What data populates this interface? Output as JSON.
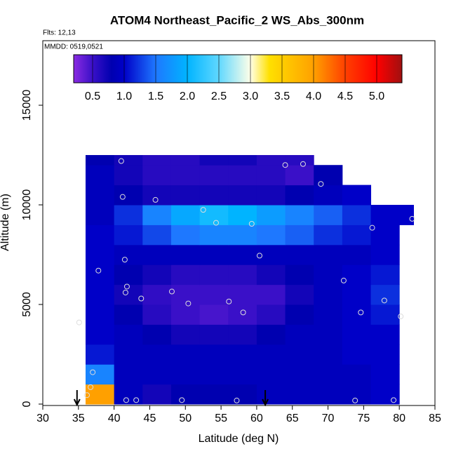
{
  "chart_data": {
    "type": "heatmap",
    "title": "ATOM4 Northeast_Pacific_2 WS_Abs_300nm",
    "annotations": [
      "Flts: 12,13",
      "MMDD: 0519,0521"
    ],
    "x_label": "Latitude (deg N)",
    "y_label": "Altitude (m)",
    "xlim": [
      30,
      85
    ],
    "xticks": [
      30,
      35,
      40,
      45,
      50,
      55,
      60,
      65,
      70,
      75,
      80,
      85
    ],
    "ylim": [
      -70,
      18240
    ],
    "yticks": [
      0,
      5000,
      10000,
      15000
    ],
    "x_edges": [
      36,
      40,
      44,
      48,
      52,
      56,
      60,
      64,
      68,
      72,
      76,
      80,
      82
    ],
    "y_edges": [
      0,
      1000,
      2000,
      3000,
      4000,
      5000,
      6000,
      7000,
      8000,
      9000,
      10000,
      11000,
      12000,
      12500
    ],
    "z": [
      [
        4.0,
        0.9,
        0.7,
        0.8,
        0.8,
        0.8,
        0.9,
        0.9,
        0.9,
        0.9,
        1.0,
        null
      ],
      [
        1.6,
        0.9,
        0.9,
        0.9,
        0.9,
        0.9,
        0.9,
        0.9,
        0.9,
        0.9,
        1.0,
        null
      ],
      [
        1.1,
        0.9,
        0.9,
        0.9,
        0.9,
        0.9,
        0.9,
        0.9,
        0.9,
        1.0,
        1.0,
        null
      ],
      [
        1.0,
        0.9,
        0.8,
        0.7,
        0.7,
        0.7,
        0.8,
        0.9,
        0.9,
        1.0,
        1.0,
        null
      ],
      [
        1.0,
        0.8,
        0.6,
        0.5,
        0.45,
        0.5,
        0.6,
        0.8,
        0.9,
        1.0,
        1.1,
        null
      ],
      [
        1.0,
        0.7,
        0.55,
        0.5,
        0.5,
        0.5,
        0.5,
        0.7,
        0.9,
        1.0,
        1.2,
        null
      ],
      [
        1.0,
        0.8,
        0.7,
        0.6,
        0.6,
        0.6,
        0.7,
        0.8,
        0.9,
        1.0,
        1.1,
        null
      ],
      [
        1.0,
        0.9,
        0.9,
        0.9,
        0.9,
        0.9,
        0.9,
        0.9,
        0.9,
        0.9,
        1.0,
        null
      ],
      [
        1.0,
        1.1,
        1.3,
        1.5,
        1.6,
        1.6,
        1.5,
        1.4,
        1.2,
        1.1,
        1.0,
        null
      ],
      [
        0.9,
        1.2,
        1.6,
        1.9,
        2.1,
        2.0,
        1.8,
        1.6,
        1.4,
        1.2,
        1.0,
        1.0
      ],
      [
        0.9,
        0.8,
        0.7,
        0.7,
        0.7,
        0.7,
        0.7,
        0.8,
        0.9,
        1.0,
        null,
        null
      ],
      [
        0.9,
        0.7,
        0.6,
        0.6,
        0.6,
        0.6,
        0.6,
        0.5,
        0.8,
        null,
        null,
        null
      ],
      [
        0.8,
        0.7,
        0.6,
        0.6,
        0.7,
        0.7,
        0.6,
        0.6,
        null,
        null,
        null,
        null
      ]
    ],
    "points": {
      "color": "#dddddd",
      "x": [
        41,
        64,
        66.5,
        69,
        41.2,
        45.8,
        52.5,
        54.3,
        59.3,
        76.2,
        81.8,
        37.8,
        41.5,
        60.4,
        72.2,
        41.8,
        41.6,
        43.8,
        48.1,
        50.4,
        56.1,
        58.1,
        74.6,
        77.9,
        80.2,
        35.1,
        37,
        36.7,
        36.2,
        41.7,
        43.1,
        49.5,
        57.2,
        73.8,
        79.2
      ],
      "y": [
        12200,
        12000,
        12050,
        11050,
        10400,
        10250,
        9750,
        9100,
        9050,
        8850,
        9300,
        6700,
        7250,
        7450,
        6200,
        5900,
        5600,
        5300,
        5650,
        5050,
        5150,
        4600,
        4600,
        5200,
        4400,
        4100,
        1600,
        850,
        450,
        200,
        200,
        200,
        180,
        180,
        200
      ]
    },
    "arrow_x": [
      34.8,
      61.2
    ],
    "colorbar": {
      "lim": [
        0.2,
        5.4
      ],
      "ticks": [
        0.5,
        {
          "value": 1,
          "label": "1.0"
        },
        1.5,
        {
          "value": 2,
          "label": "2.0"
        },
        2.5,
        {
          "value": 3,
          "label": "3.0"
        },
        3.5,
        {
          "value": 4,
          "label": "4.0"
        },
        4.5,
        {
          "value": 5,
          "label": "5.0"
        }
      ],
      "colorscale": [
        [
          0.2,
          "#8a2be2"
        ],
        [
          0.5,
          "#3a10c8"
        ],
        [
          0.8,
          "#0000b0"
        ],
        [
          1.0,
          "#0000c8"
        ],
        [
          1.5,
          "#1e78ff"
        ],
        [
          2.0,
          "#00b4ff"
        ],
        [
          2.5,
          "#60d8ff"
        ],
        [
          3.0,
          "#ffffe8"
        ],
        [
          3.3,
          "#ffe000"
        ],
        [
          4.0,
          "#ffa000"
        ],
        [
          4.5,
          "#ff4000"
        ],
        [
          5.0,
          "#ff0000"
        ],
        [
          5.4,
          "#a01010"
        ]
      ]
    }
  }
}
